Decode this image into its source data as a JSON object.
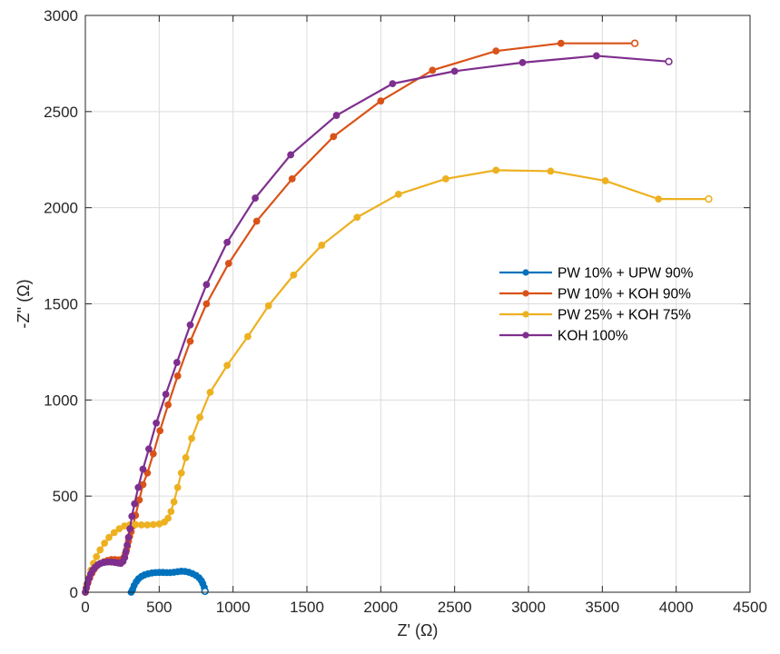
{
  "chart_data": {
    "type": "line",
    "title": "",
    "xlabel": "Z' (Ω)",
    "ylabel": "-Z'' (Ω)",
    "xlim": [
      0,
      4500
    ],
    "ylim": [
      0,
      3000
    ],
    "xticks": [
      0,
      500,
      1000,
      1500,
      2000,
      2500,
      3000,
      3500,
      4000,
      4500
    ],
    "yticks": [
      0,
      500,
      1000,
      1500,
      2000,
      2500,
      3000
    ],
    "grid": true,
    "legend_position": "center-right",
    "series": [
      {
        "name": "PW 10% + UPW 90%",
        "color": "#0072BD",
        "x": [
          310,
          320,
          330,
          345,
          360,
          380,
          400,
          425,
          450,
          475,
          500,
          525,
          550,
          575,
          600,
          625,
          650,
          675,
          700,
          725,
          750,
          770,
          785,
          795,
          805,
          810
        ],
        "y": [
          0,
          15,
          35,
          55,
          70,
          82,
          90,
          96,
          100,
          102,
          103,
          103,
          102,
          102,
          104,
          107,
          109,
          108,
          104,
          97,
          87,
          75,
          60,
          45,
          25,
          5
        ]
      },
      {
        "name": "PW 10% + KOH 90%",
        "color": "#D95319",
        "x": [
          0,
          8,
          18,
          30,
          45,
          60,
          80,
          100,
          125,
          150,
          175,
          200,
          225,
          245,
          260,
          270,
          278,
          285,
          292,
          300,
          310,
          322,
          340,
          365,
          390,
          420,
          460,
          505,
          560,
          625,
          710,
          820,
          970,
          1160,
          1400,
          1680,
          2000,
          2350,
          2780,
          3220,
          3720
        ],
        "y": [
          0,
          25,
          50,
          75,
          100,
          120,
          138,
          150,
          158,
          165,
          170,
          170,
          168,
          170,
          180,
          200,
          220,
          240,
          265,
          290,
          315,
          345,
          400,
          480,
          560,
          620,
          720,
          840,
          975,
          1125,
          1305,
          1500,
          1710,
          1930,
          2150,
          2370,
          2555,
          2715,
          2815,
          2855,
          2855
        ]
      },
      {
        "name": "PW 25% + KOH 75%",
        "color": "#EDB120",
        "x": [
          0,
          10,
          22,
          38,
          55,
          75,
          100,
          130,
          160,
          195,
          230,
          265,
          300,
          340,
          380,
          420,
          460,
          500,
          535,
          560,
          580,
          600,
          625,
          650,
          680,
          720,
          775,
          845,
          960,
          1100,
          1240,
          1410,
          1600,
          1840,
          2120,
          2440,
          2780,
          3150,
          3520,
          3880,
          4220
        ],
        "y": [
          0,
          40,
          75,
          115,
          150,
          185,
          220,
          255,
          285,
          310,
          330,
          345,
          350,
          352,
          350,
          350,
          352,
          355,
          365,
          385,
          420,
          470,
          545,
          620,
          700,
          800,
          910,
          1040,
          1180,
          1330,
          1490,
          1650,
          1805,
          1950,
          2070,
          2150,
          2195,
          2190,
          2140,
          2045,
          2045
        ]
      },
      {
        "name": "KOH 100%",
        "color": "#7E2F8E",
        "x": [
          0,
          6,
          14,
          24,
          36,
          50,
          66,
          84,
          104,
          126,
          150,
          175,
          200,
          222,
          240,
          255,
          266,
          275,
          283,
          292,
          302,
          315,
          333,
          358,
          390,
          430,
          480,
          545,
          620,
          710,
          820,
          960,
          1150,
          1390,
          1700,
          2080,
          2500,
          2960,
          3460,
          3950
        ],
        "y": [
          0,
          20,
          45,
          70,
          95,
          115,
          130,
          142,
          150,
          155,
          157,
          157,
          155,
          152,
          150,
          160,
          180,
          210,
          245,
          285,
          330,
          395,
          460,
          545,
          640,
          745,
          880,
          1030,
          1195,
          1390,
          1600,
          1820,
          2050,
          2275,
          2480,
          2645,
          2710,
          2755,
          2790,
          2760
        ]
      }
    ]
  }
}
